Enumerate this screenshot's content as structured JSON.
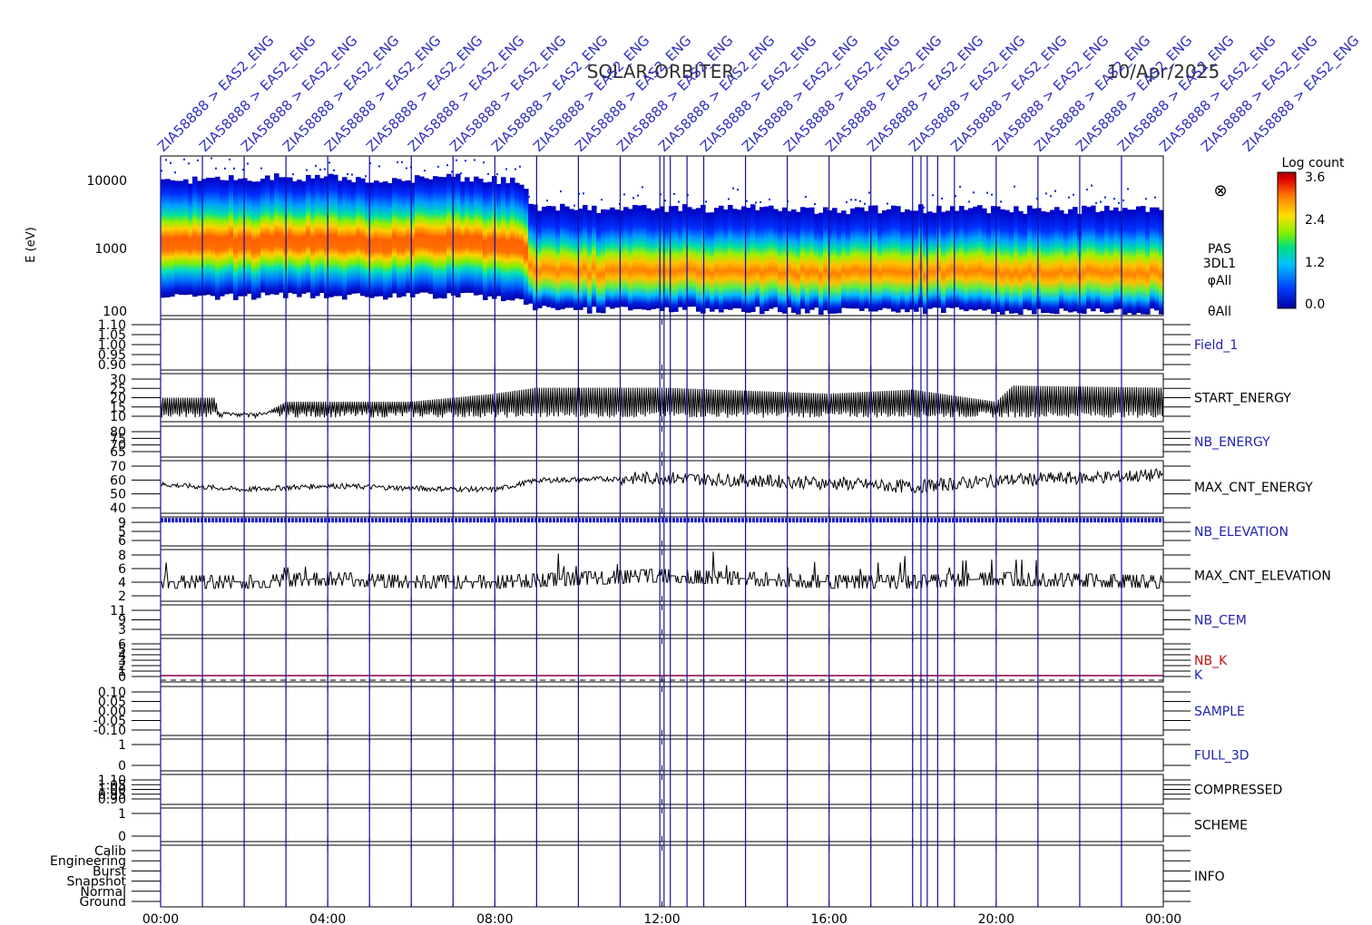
{
  "title": {
    "mission": "SOLAR-ORBITER",
    "date": "10/Apr/2025"
  },
  "colors": {
    "marker_lines": "#1010a0",
    "axis": "#000000",
    "blue_label": "#1f1fb0",
    "red_label": "#c01010",
    "k_line": "#800040"
  },
  "colorbar": {
    "title": "Log count",
    "ticks": [
      "3.6",
      "2.4",
      "1.2",
      "0.0"
    ]
  },
  "spectrogram": {
    "ylabel": "E (eV)",
    "yticks": [
      "10000",
      "1000",
      "100"
    ],
    "side_labels": [
      "PAS",
      "3DL1",
      "φAll",
      "θAll"
    ],
    "marker_symbol": "⊗"
  },
  "panels": [
    {
      "label": "Field_1",
      "ticks": [
        "1.10",
        "1.05",
        "1.00",
        "0.95",
        "0.90"
      ],
      "color": "blue"
    },
    {
      "label": "START_ENERGY",
      "ticks": [
        "30",
        "25",
        "20",
        "15",
        "10"
      ],
      "color": "black"
    },
    {
      "label": "NB_ENERGY",
      "ticks": [
        "80",
        "75",
        "70",
        "65"
      ],
      "color": "blue"
    },
    {
      "label": "MAX_CNT_ENERGY",
      "ticks": [
        "70",
        "60",
        "50",
        "40"
      ],
      "color": "black"
    },
    {
      "label": "NB_ELEVATION",
      "ticks": [
        "9",
        "5",
        "6"
      ],
      "color": "blue"
    },
    {
      "label": "MAX_CNT_ELEVATION",
      "ticks": [
        "8",
        "6",
        "4",
        "2"
      ],
      "color": "black"
    },
    {
      "label": "NB_CEM",
      "ticks": [
        "11",
        "9",
        "3"
      ],
      "color": "blue"
    },
    {
      "label": "NB_K",
      "label2": "K",
      "ticks": [
        "6",
        "5",
        "4",
        "3",
        "2",
        "1",
        "0"
      ],
      "color": "red"
    },
    {
      "label": "SAMPLE",
      "ticks": [
        "0.10",
        "0.05",
        "0.00",
        "-0.05",
        "-0.10"
      ],
      "color": "blue"
    },
    {
      "label": "FULL_3D",
      "ticks": [
        "1",
        "0"
      ],
      "color": "blue"
    },
    {
      "label": "COMPRESSED",
      "ticks": [
        "1.10",
        "1.05",
        "1.00",
        "0.95",
        "0.90"
      ],
      "color": "black"
    },
    {
      "label": "SCHEME",
      "ticks": [
        "1",
        "0"
      ],
      "color": "black"
    },
    {
      "label": "INFO",
      "ticks": [
        "Calib",
        "Engineering",
        "Burst",
        "Snapshot",
        "Normal",
        "Ground"
      ],
      "color": "black"
    }
  ],
  "x_axis": {
    "ticks": [
      "00:00",
      "04:00",
      "08:00",
      "12:00",
      "16:00",
      "20:00",
      "00:00"
    ]
  },
  "markers": {
    "labels": [
      "ZIA58888 > EAS2_ENG",
      "ZIA58888 > EAS2_ENG",
      "ZIA58888 > EAS2_ENG",
      "ZIA58888 > EAS2_ENG",
      "ZIA58888 > EAS2_ENG",
      "ZIA58888 > EAS2_ENG",
      "ZIA58888 > EAS2_ENG",
      "ZIA58888 > EAS2_ENG",
      "ZIA58888 > EAS2_ENG",
      "ZIA58888 > EAS2_ENG",
      "ZIA58888 > EAS2_ENG",
      "ZIA58888 > EAS2_ENG",
      "ZIA58888 > EAS2_ENG",
      "ZIA58888 > EAS2_ENG",
      "ZIA58888 > EAS2_ENG",
      "ZIA58888 > EAS2_ENG",
      "ZIA58888 > EAS2_ENG",
      "ZIA58888 > EAS2_ENG",
      "ZIA58888 > EAS2_ENG",
      "ZIA58888 > EAS2_ENG",
      "ZIA58888 > EAS2_ENG",
      "ZIA58888 > EAS2_ENG",
      "ZIA58888 > EAS2_ENG",
      "ZIA58888 > EAS2_ENG",
      "ZIA58888 > EAS2_ENG",
      "ZIA58888 > EAS2_ENG",
      "ZIA58888 > EAS2_ENG"
    ],
    "times_h": [
      0.0,
      1.0,
      2.0,
      3.0,
      4.0,
      5.0,
      6.0,
      7.0,
      8.0,
      9.0,
      10.0,
      11.0,
      11.95,
      12.05,
      12.2,
      12.6,
      13.0,
      14.0,
      15.0,
      16.0,
      17.0,
      18.0,
      18.2,
      18.35,
      18.6,
      19.0,
      20.0,
      21.0,
      22.0,
      23.0
    ]
  },
  "chart_data": {
    "type": "heatmap",
    "title": "SOLAR-ORBITER 10/Apr/2025",
    "xlabel": "",
    "ylabel": "E (eV)",
    "x_range_h": [
      0,
      24
    ],
    "y_range_eV": [
      100,
      15000
    ],
    "y_scale": "log",
    "colorbar_range": [
      0.0,
      3.6
    ],
    "colorbar_label": "Log count",
    "peak_energy_eV": {
      "x_h": [
        0,
        1,
        2,
        3,
        4,
        5,
        6,
        7,
        8,
        8.5,
        9,
        10,
        12,
        14,
        16,
        18,
        20,
        22,
        24
      ],
      "values": [
        850,
        850,
        870,
        900,
        880,
        860,
        880,
        900,
        850,
        800,
        550,
        520,
        520,
        520,
        500,
        520,
        500,
        500,
        500
      ]
    },
    "series": [
      {
        "name": "START_ENERGY",
        "x_h": [
          0,
          1.3,
          1.4,
          2.5,
          3,
          6,
          8,
          9,
          12,
          16,
          18,
          20,
          20.4,
          24
        ],
        "values": [
          20,
          20,
          12,
          12,
          18,
          18,
          22,
          25,
          25,
          22,
          24,
          18,
          26,
          25
        ],
        "ylim": [
          8,
          32
        ]
      },
      {
        "name": "MAX_CNT_ENERGY",
        "x_h": [
          0,
          1,
          2,
          4,
          6,
          8,
          9,
          12,
          16,
          18,
          20,
          22,
          24
        ],
        "values": [
          57,
          55,
          53,
          56,
          54,
          53,
          60,
          62,
          58,
          55,
          60,
          62,
          64
        ],
        "ylim": [
          35,
          75
        ]
      },
      {
        "name": "MAX_CNT_ELEVATION",
        "x_h": [
          0,
          2,
          4,
          6,
          8,
          12,
          16,
          18,
          20,
          24
        ],
        "values": [
          4,
          4,
          4.5,
          4,
          4,
          5,
          4,
          4,
          4.5,
          4
        ],
        "ylim": [
          1,
          9
        ]
      },
      {
        "name": "NB_ELEVATION",
        "x_h": [
          0,
          24
        ],
        "values": [
          9,
          9
        ],
        "ylim": [
          5,
          9.5
        ]
      }
    ]
  }
}
